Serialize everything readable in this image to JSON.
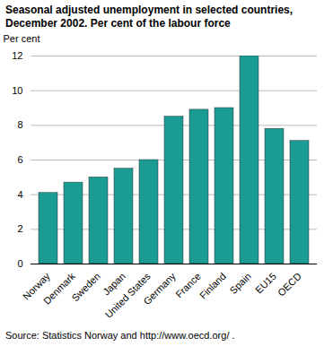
{
  "chart_data": {
    "type": "bar",
    "title": "Seasonal adjusted unemployment in selected countries, December 2002. Per cent of the labour force",
    "y_label": "Per cent",
    "source": "Source: Statistics Norway and http://www.oecd.org/ .",
    "categories": [
      "Norway",
      "Denmark",
      "Sweden",
      "Japan",
      "United States",
      "Germany",
      "France",
      "Finland",
      "Spain",
      "EU15",
      "OECD"
    ],
    "values": [
      4.1,
      4.7,
      5.0,
      5.5,
      6.0,
      8.5,
      8.9,
      9.0,
      12.0,
      7.8,
      7.1
    ],
    "color": "#1a9b94",
    "ylim": [
      0,
      12
    ],
    "yticks": [
      0,
      2,
      4,
      6,
      8,
      10,
      12
    ],
    "grid": true
  }
}
